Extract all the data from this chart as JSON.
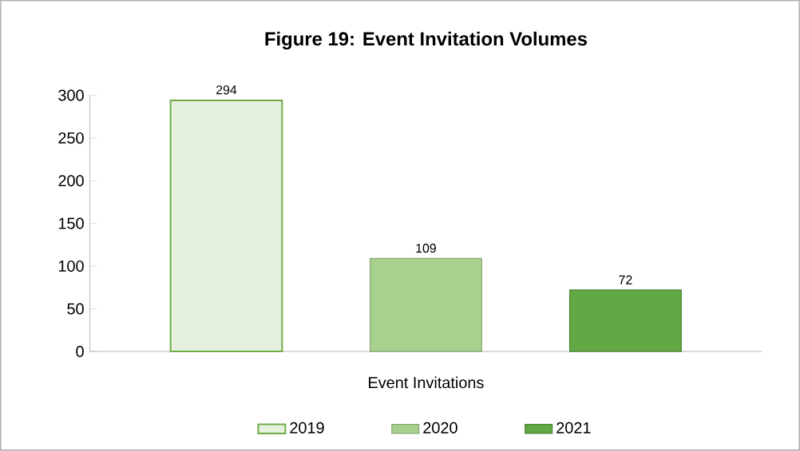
{
  "chart_data": {
    "type": "bar",
    "title": "Figure 19: Event Invitation Volumes",
    "categories": [
      "Event Invitations"
    ],
    "series": [
      {
        "name": "2019",
        "color": "#70ad47",
        "values": [
          294
        ]
      },
      {
        "name": "2020",
        "color": "#a9d18e",
        "values": [
          109
        ]
      },
      {
        "name": "2021",
        "color": "#62a844",
        "values": [
          72
        ]
      }
    ],
    "ylim": [
      0,
      300
    ],
    "yticks": [
      0,
      50,
      100,
      150,
      200,
      250,
      300
    ],
    "grid": false,
    "legend": "bottom",
    "data_labels": true
  }
}
